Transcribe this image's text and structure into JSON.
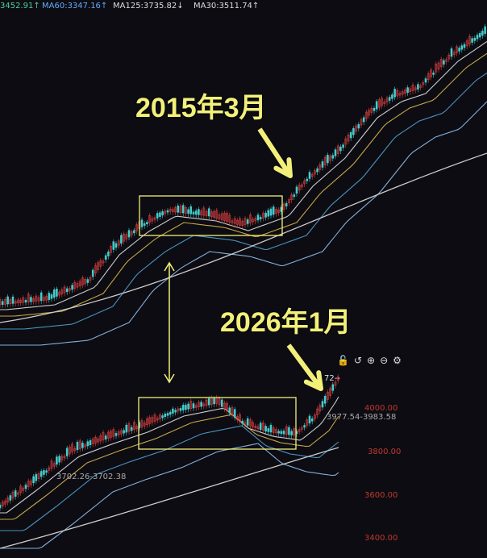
{
  "legend": {
    "ma_a": "3452.91↑",
    "ma60": "MA60:3347.16↑",
    "ma125": "MA125:3735.82↓",
    "ma30": "MA30:3511.74↑"
  },
  "annotations": {
    "top_label": "2015年3月",
    "bottom_label": "2026年1月",
    "top_range": "3977.54-3983.58",
    "bottom_range": "3702.26-3702.38",
    "peak_label": "72--"
  },
  "toolbar": {
    "icons": [
      "lock-icon",
      "undo-icon",
      "zoom-in-icon",
      "zoom-out-icon",
      "gear-icon"
    ],
    "glyphs": [
      "🔓",
      "↺",
      "⊕",
      "⊖",
      "⚙"
    ]
  },
  "colors": {
    "up": "#e04040",
    "down": "#4cc",
    "annotation": "#f3f07a",
    "axis_label": "#c0392b"
  },
  "chart_data": [
    {
      "type": "candlestick",
      "title": "",
      "description_text": "2015年3月",
      "ma_lines": [
        "MA30",
        "MA60",
        "MA125"
      ]
    },
    {
      "type": "candlestick",
      "title": "",
      "description_text": "2026年1月",
      "yticks": [
        "4000.00",
        "3800.00",
        "3600.00",
        "3400.00"
      ],
      "ytick_values": [
        4000,
        3800,
        3600,
        3400
      ]
    }
  ]
}
